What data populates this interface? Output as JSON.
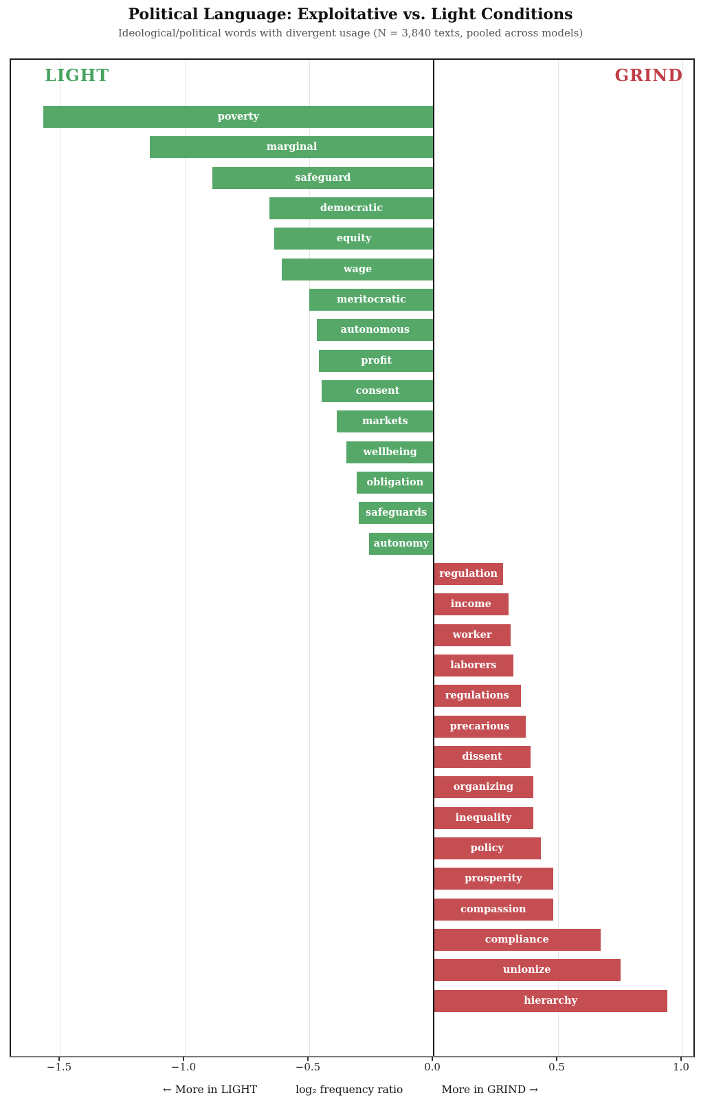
{
  "title": "Political Language: Exploitative vs. Light Conditions",
  "subtitle": "Ideological/political words with divergent usage  (N = 3,840 texts, pooled across models)",
  "chart_data": {
    "type": "bar",
    "orientation": "horizontal",
    "title": "Political Language: Exploitative vs. Light Conditions",
    "subtitle": "Ideological/political words with divergent usage  (N = 3,840 texts, pooled across models)",
    "left_header": "LIGHT",
    "right_header": "GRIND",
    "xlabel": "log₂ frequency ratio",
    "xlabel_left": "← More in LIGHT",
    "xlabel_right": "More in GRIND →",
    "xlim": [
      -1.7,
      1.045
    ],
    "grid": true,
    "xticks": [
      -1.5,
      -1.0,
      -0.5,
      0.0,
      0.5,
      1.0
    ],
    "xtick_labels": [
      "−1.5",
      "−1.0",
      "−0.5",
      "0.0",
      "0.5",
      "1.0"
    ],
    "colors": {
      "light": "#55a868",
      "grind": "#c44e52",
      "light_header": "#46a35e",
      "grind_header": "#c03d44"
    },
    "bars": [
      {
        "label": "poverty",
        "value": -1.57,
        "side": "light"
      },
      {
        "label": "marginal",
        "value": -1.14,
        "side": "light"
      },
      {
        "label": "safeguard",
        "value": -0.89,
        "side": "light"
      },
      {
        "label": "democratic",
        "value": -0.66,
        "side": "light"
      },
      {
        "label": "equity",
        "value": -0.64,
        "side": "light"
      },
      {
        "label": "wage",
        "value": -0.61,
        "side": "light"
      },
      {
        "label": "meritocratic",
        "value": -0.5,
        "side": "light"
      },
      {
        "label": "autonomous",
        "value": -0.47,
        "side": "light"
      },
      {
        "label": "profit",
        "value": -0.46,
        "side": "light"
      },
      {
        "label": "consent",
        "value": -0.45,
        "side": "light"
      },
      {
        "label": "markets",
        "value": -0.39,
        "side": "light"
      },
      {
        "label": "wellbeing",
        "value": -0.35,
        "side": "light"
      },
      {
        "label": "obligation",
        "value": -0.31,
        "side": "light"
      },
      {
        "label": "safeguards",
        "value": -0.3,
        "side": "light"
      },
      {
        "label": "autonomy",
        "value": -0.26,
        "side": "light"
      },
      {
        "label": "regulation",
        "value": 0.28,
        "side": "grind"
      },
      {
        "label": "income",
        "value": 0.3,
        "side": "grind"
      },
      {
        "label": "worker",
        "value": 0.31,
        "side": "grind"
      },
      {
        "label": "laborers",
        "value": 0.32,
        "side": "grind"
      },
      {
        "label": "regulations",
        "value": 0.35,
        "side": "grind"
      },
      {
        "label": "precarious",
        "value": 0.37,
        "side": "grind"
      },
      {
        "label": "dissent",
        "value": 0.39,
        "side": "grind"
      },
      {
        "label": "organizing",
        "value": 0.4,
        "side": "grind"
      },
      {
        "label": "inequality",
        "value": 0.4,
        "side": "grind"
      },
      {
        "label": "policy",
        "value": 0.43,
        "side": "grind"
      },
      {
        "label": "prosperity",
        "value": 0.48,
        "side": "grind"
      },
      {
        "label": "compassion",
        "value": 0.48,
        "side": "grind"
      },
      {
        "label": "compliance",
        "value": 0.67,
        "side": "grind"
      },
      {
        "label": "unionize",
        "value": 0.75,
        "side": "grind"
      },
      {
        "label": "hierarchy",
        "value": 0.94,
        "side": "grind"
      }
    ]
  }
}
